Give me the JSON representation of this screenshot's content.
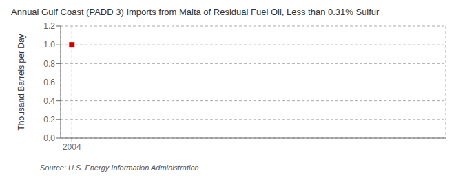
{
  "chart_data": {
    "type": "scatter",
    "title": "Annual Gulf Coast (PADD 3) Imports from Malta of Residual Fuel Oil, Less than 0.31% Sulfur",
    "y_label": "Thousand Barrels per Day",
    "annotations": [
      "Source: U.S. Energy Information Administration"
    ],
    "x": [
      2004
    ],
    "values": [
      1.0
    ],
    "color": "#cc0000",
    "marker": "square",
    "xlim": [
      2003.7,
      2014.0
    ],
    "ylim": [
      0.0,
      1.2
    ],
    "xticks": [
      2004
    ],
    "yticks": [
      {
        "value": 0.0,
        "label": "0.0"
      },
      0.2,
      0.4,
      0.6,
      0.8,
      {
        "value": 1.0,
        "label": "1.0"
      },
      1.2
    ],
    "grid": true
  }
}
